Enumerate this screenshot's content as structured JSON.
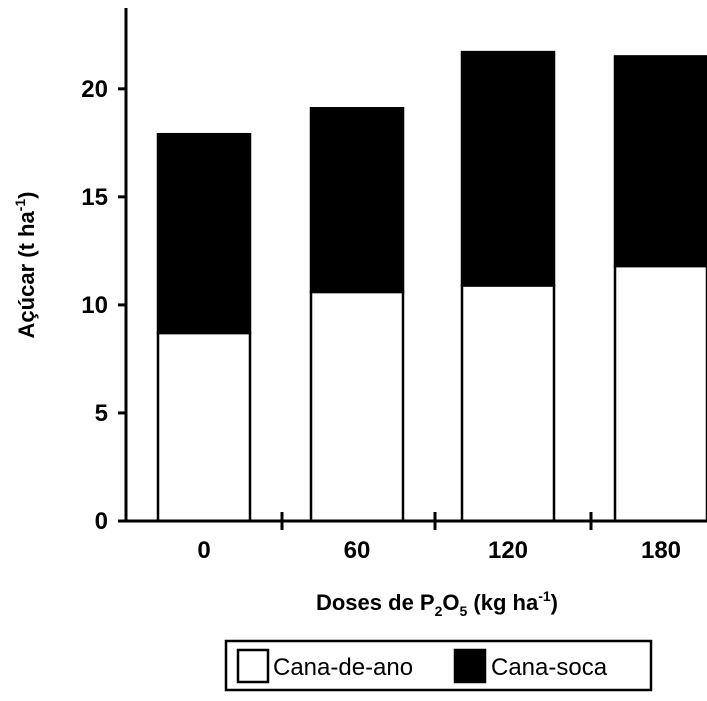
{
  "chart_data": {
    "type": "bar",
    "stacked": true,
    "categories": [
      "0",
      "60",
      "120",
      "180"
    ],
    "series": [
      {
        "name": "Cana-de-ano",
        "values": [
          8.7,
          10.6,
          10.9,
          11.8
        ],
        "color": "#ffffff"
      },
      {
        "name": "Cana-soca",
        "values": [
          9.2,
          8.5,
          10.8,
          9.7
        ],
        "color": "#000000"
      }
    ],
    "ylim": [
      0,
      23
    ],
    "yticks": [
      0,
      5,
      10,
      15,
      20
    ],
    "ytick_labels": [
      "0",
      "5",
      "10",
      "15",
      "20"
    ],
    "ylabel": {
      "main": "Açúcar (t ha",
      "sup": "-1",
      "end": ")"
    },
    "xlabel": {
      "prefix": "Doses de P",
      "sub1": "2",
      "mid": "O",
      "sub2": "5",
      "suffix": " (kg ha",
      "sup": "-1",
      "end": ")"
    },
    "grid": false,
    "legend_position": "bottom"
  }
}
